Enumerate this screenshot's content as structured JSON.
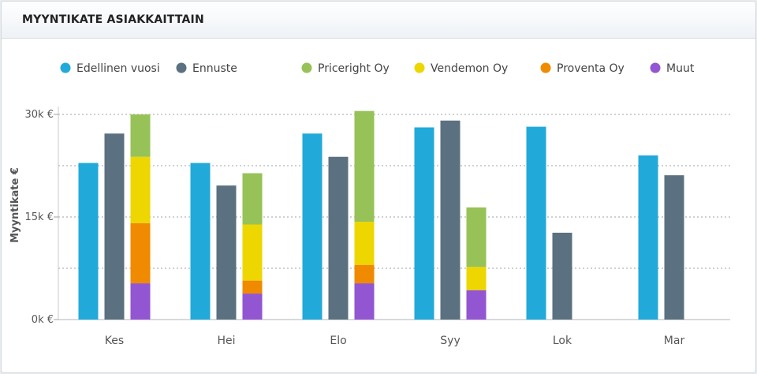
{
  "header": {
    "title": "MYYNTIKATE ASIAKKAITTAIN"
  },
  "chart_data": {
    "type": "bar",
    "title": "MYYNTIKATE ASIAKKAITTAIN",
    "ylabel": "Myyntikate €",
    "xlabel": "",
    "ylim": [
      0,
      30000
    ],
    "y_ticks": [
      {
        "value": 0,
        "label": "0k €"
      },
      {
        "value": 15000,
        "label": "15k €"
      },
      {
        "value": 30000,
        "label": "30k €"
      }
    ],
    "grid": true,
    "legend_position": "top",
    "categories": [
      "Kes",
      "Hei",
      "Elo",
      "Syy",
      "Lok",
      "Mar"
    ],
    "series": [
      {
        "name": "Edellinen vuosi",
        "color": "#21aad9",
        "group": "previous",
        "values": [
          22900,
          22900,
          27200,
          28100,
          28200,
          24000
        ]
      },
      {
        "name": "Ennuste",
        "color": "#5b7080",
        "group": "forecast",
        "values": [
          27200,
          19600,
          23800,
          29100,
          12700,
          21100
        ]
      },
      {
        "name": "Priceright Oy",
        "color": "#97c257",
        "group": "stack",
        "values": [
          6200,
          7500,
          16200,
          8700,
          0,
          0
        ]
      },
      {
        "name": "Vendemon Oy",
        "color": "#eed600",
        "group": "stack",
        "values": [
          9700,
          8200,
          6300,
          3400,
          0,
          0
        ]
      },
      {
        "name": "Proventa Oy",
        "color": "#f08a00",
        "group": "stack",
        "values": [
          8800,
          1900,
          2700,
          0,
          0,
          0
        ]
      },
      {
        "name": "Muut",
        "color": "#9256d3",
        "group": "stack",
        "values": [
          5300,
          3800,
          5300,
          4300,
          0,
          0
        ]
      }
    ]
  }
}
